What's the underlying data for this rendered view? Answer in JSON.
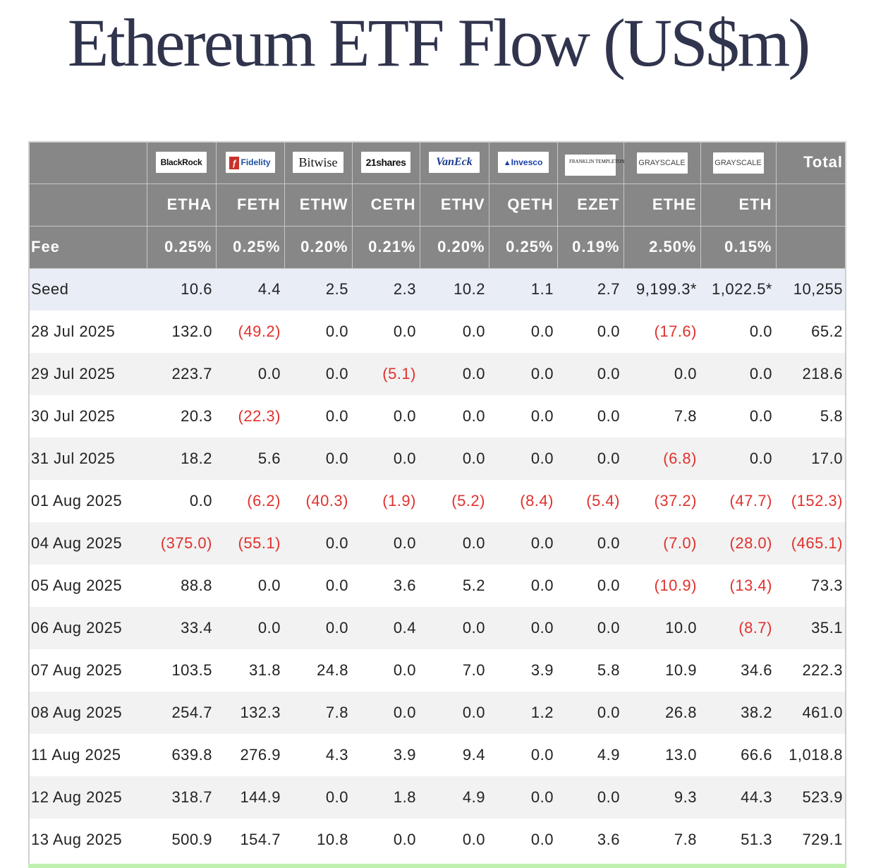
{
  "title": "Ethereum ETF Flow (US$m)",
  "colors": {
    "header_bg": "#878787",
    "negative": "#e0312d",
    "seed_bg": "#e9edf6",
    "stripe_bg": "#f2f2f2",
    "title": "#30344d"
  },
  "header": {
    "issuers": [
      {
        "logo": "BlackRock",
        "icon": "blackrock-logo"
      },
      {
        "logo": "Fidelity",
        "icon": "fidelity-logo"
      },
      {
        "logo": "Bitwise",
        "icon": "bitwise-logo"
      },
      {
        "logo": "21shares",
        "icon": "21shares-logo"
      },
      {
        "logo": "VanEck",
        "icon": "vaneck-logo"
      },
      {
        "logo": "Invesco",
        "icon": "invesco-logo"
      },
      {
        "logo": "FRANKLIN TEMPLETON",
        "icon": "franklin-templeton-logo"
      },
      {
        "logo": "GRAYSCALE",
        "icon": "grayscale-logo"
      },
      {
        "logo": "GRAYSCALE",
        "icon": "grayscale-logo"
      }
    ],
    "total_label": "Total",
    "tickers": [
      "ETHA",
      "FETH",
      "ETHW",
      "CETH",
      "ETHV",
      "QETH",
      "EZET",
      "ETHE",
      "ETH"
    ],
    "fee_label": "Fee",
    "fees": [
      "0.25%",
      "0.25%",
      "0.20%",
      "0.21%",
      "0.20%",
      "0.25%",
      "0.19%",
      "2.50%",
      "0.15%"
    ]
  },
  "rows": [
    {
      "label": "Seed",
      "values": [
        "10.6",
        "4.4",
        "2.5",
        "2.3",
        "10.2",
        "1.1",
        "2.7",
        "9,199.3*",
        "1,022.5*",
        "10,255"
      ]
    },
    {
      "label": "28 Jul 2025",
      "values": [
        "132.0",
        "(49.2)",
        "0.0",
        "0.0",
        "0.0",
        "0.0",
        "0.0",
        "(17.6)",
        "0.0",
        "65.2"
      ]
    },
    {
      "label": "29 Jul 2025",
      "values": [
        "223.7",
        "0.0",
        "0.0",
        "(5.1)",
        "0.0",
        "0.0",
        "0.0",
        "0.0",
        "0.0",
        "218.6"
      ]
    },
    {
      "label": "30 Jul 2025",
      "values": [
        "20.3",
        "(22.3)",
        "0.0",
        "0.0",
        "0.0",
        "0.0",
        "0.0",
        "7.8",
        "0.0",
        "5.8"
      ]
    },
    {
      "label": "31 Jul 2025",
      "values": [
        "18.2",
        "5.6",
        "0.0",
        "0.0",
        "0.0",
        "0.0",
        "0.0",
        "(6.8)",
        "0.0",
        "17.0"
      ]
    },
    {
      "label": "01 Aug 2025",
      "values": [
        "0.0",
        "(6.2)",
        "(40.3)",
        "(1.9)",
        "(5.2)",
        "(8.4)",
        "(5.4)",
        "(37.2)",
        "(47.7)",
        "(152.3)"
      ]
    },
    {
      "label": "04 Aug 2025",
      "values": [
        "(375.0)",
        "(55.1)",
        "0.0",
        "0.0",
        "0.0",
        "0.0",
        "0.0",
        "(7.0)",
        "(28.0)",
        "(465.1)"
      ]
    },
    {
      "label": "05 Aug 2025",
      "values": [
        "88.8",
        "0.0",
        "0.0",
        "3.6",
        "5.2",
        "0.0",
        "0.0",
        "(10.9)",
        "(13.4)",
        "73.3"
      ]
    },
    {
      "label": "06 Aug 2025",
      "values": [
        "33.4",
        "0.0",
        "0.0",
        "0.4",
        "0.0",
        "0.0",
        "0.0",
        "10.0",
        "(8.7)",
        "35.1"
      ]
    },
    {
      "label": "07 Aug 2025",
      "values": [
        "103.5",
        "31.8",
        "24.8",
        "0.0",
        "7.0",
        "3.9",
        "5.8",
        "10.9",
        "34.6",
        "222.3"
      ]
    },
    {
      "label": "08 Aug 2025",
      "values": [
        "254.7",
        "132.3",
        "7.8",
        "0.0",
        "0.0",
        "1.2",
        "0.0",
        "26.8",
        "38.2",
        "461.0"
      ]
    },
    {
      "label": "11 Aug 2025",
      "values": [
        "639.8",
        "276.9",
        "4.3",
        "3.9",
        "9.4",
        "0.0",
        "4.9",
        "13.0",
        "66.6",
        "1,018.8"
      ]
    },
    {
      "label": "12 Aug 2025",
      "values": [
        "318.7",
        "144.9",
        "0.0",
        "1.8",
        "4.9",
        "0.0",
        "0.0",
        "9.3",
        "44.3",
        "523.9"
      ]
    },
    {
      "label": "13 Aug 2025",
      "values": [
        "500.9",
        "154.7",
        "10.8",
        "0.0",
        "0.0",
        "0.0",
        "3.6",
        "7.8",
        "51.3",
        "729.1"
      ]
    }
  ]
}
